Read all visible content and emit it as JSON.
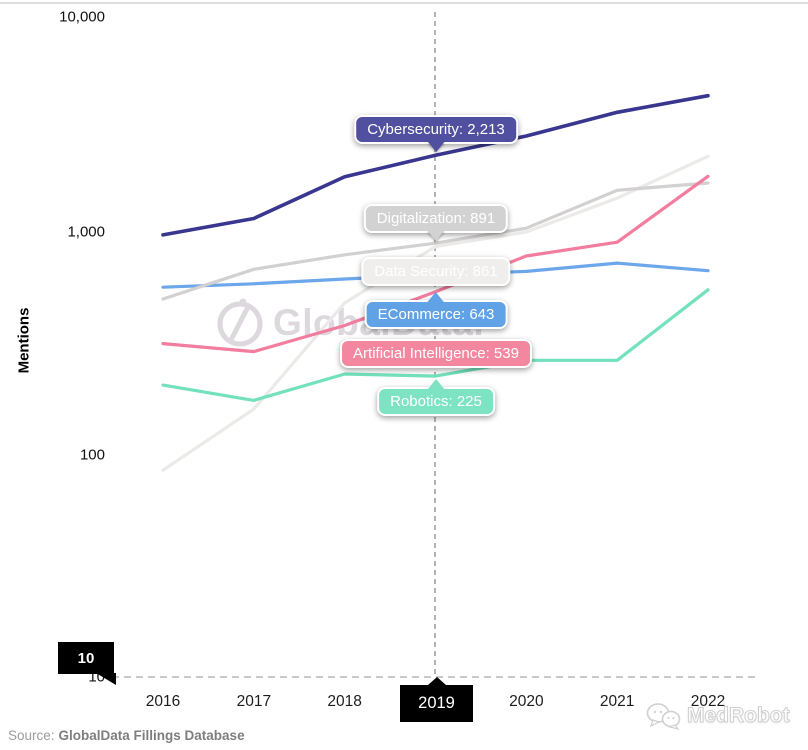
{
  "chart_data": {
    "type": "line",
    "title": "",
    "ylabel": "Mentions",
    "xlabel": "",
    "scale_y": "log",
    "ylim": [
      10,
      10000
    ],
    "grid": "off",
    "legend": "none",
    "yticks": [
      {
        "label": "10,000",
        "value": 10000
      },
      {
        "label": "1,000",
        "value": 1000
      },
      {
        "label": "100",
        "value": 100
      },
      {
        "label": "10",
        "value": 10
      }
    ],
    "x": [
      2016,
      2017,
      2018,
      2019,
      2020,
      2021,
      2022
    ],
    "highlight_x": 2019,
    "series": [
      {
        "name": "Cybersecurity",
        "color": "#38368e",
        "values": [
          970,
          1150,
          1770,
          2213,
          2700,
          3450,
          4100
        ]
      },
      {
        "name": "Digitalization",
        "color": "#d2d0d0",
        "values": [
          500,
          680,
          790,
          891,
          1040,
          1540,
          1660
        ]
      },
      {
        "name": "Data Security",
        "color": "#eceae8",
        "values": [
          85,
          160,
          480,
          861,
          1000,
          1420,
          2190
        ]
      },
      {
        "name": "ECommerce",
        "color": "#6ba7ea",
        "values": [
          565,
          585,
          615,
          643,
          665,
          725,
          670
        ]
      },
      {
        "name": "Artificial Intelligence",
        "color": "#f27d9e",
        "values": [
          315,
          290,
          380,
          539,
          780,
          900,
          1780
        ]
      },
      {
        "name": "Robotics",
        "color": "#72e1bc",
        "values": [
          205,
          175,
          230,
          225,
          265,
          265,
          550
        ]
      }
    ]
  },
  "tooltips": [
    {
      "series": "Cybersecurity",
      "text": "Cybersecurity: 2,213",
      "bg": "#514fa0"
    },
    {
      "series": "Digitalization",
      "text": "Digitalization: 891",
      "bg": "#d3d2d2"
    },
    {
      "series": "Data Security",
      "text": "Data Security: 861",
      "bg": "#efeeec"
    },
    {
      "series": "ECommerce",
      "text": "ECommerce: 643",
      "bg": "#61a1e6"
    },
    {
      "series": "Artificial Intelligence",
      "text": "Artificial Intelligence: 539",
      "bg": "#f2879f"
    },
    {
      "series": "Robotics",
      "text": "Robotics: 225",
      "bg": "#7ee3c2"
    }
  ],
  "axis_tooltips": {
    "x_value": "2019",
    "y_value": "10"
  },
  "watermark": {
    "brand": "GlobalData."
  },
  "footer": {
    "source_prefix": "Source:",
    "source_name": "GlobalData Fillings Database",
    "logo_text": "MedRobot"
  }
}
